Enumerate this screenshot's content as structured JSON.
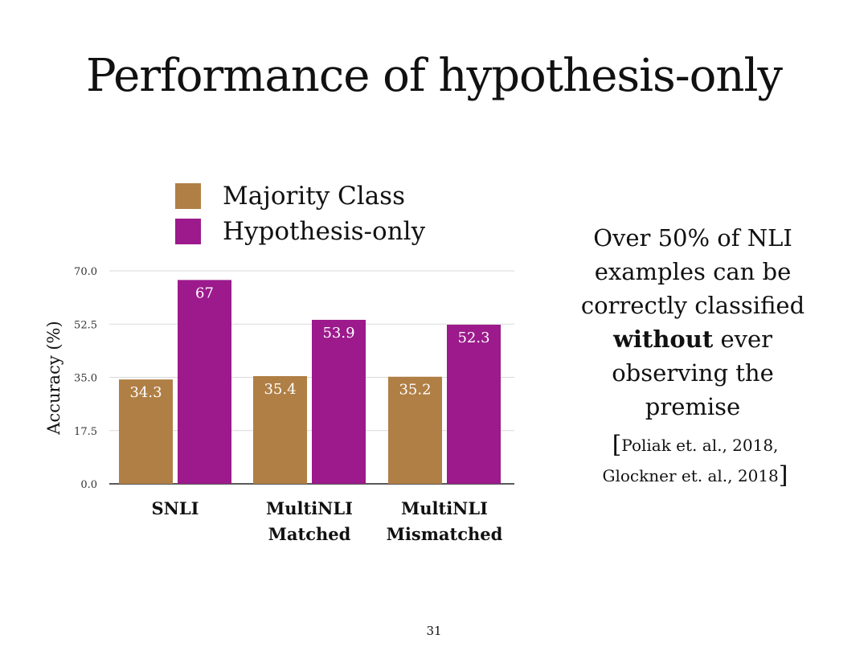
{
  "slide": {
    "title": "Performance of hypothesis-only",
    "page_number": "31"
  },
  "side_text": {
    "line1": "Over 50% of NLI",
    "line2": "examples can be",
    "line3": "correctly classified",
    "line4_emph": "without",
    "line4_rest": " ever",
    "line5": "observing the",
    "line6": "premise",
    "citation_open": "[",
    "citation_line1": "Poliak et. al., 2018,",
    "citation_line2": "Glockner et. al., 2018",
    "citation_close": "]"
  },
  "colors": {
    "majority": "#b07f45",
    "hypothesis": "#9c1a8c",
    "grid": "#d9d9d9",
    "axis": "#222222"
  },
  "chart_data": {
    "type": "bar",
    "title": "",
    "xlabel": "",
    "ylabel": "Accuracy (%)",
    "ylim": [
      0,
      70
    ],
    "yticks": [
      0,
      17.5,
      35,
      52.5,
      70
    ],
    "ytick_labels": [
      "0.0",
      "17.5",
      "35.0",
      "52.5",
      "70.0"
    ],
    "grid": true,
    "legend_position": "top",
    "categories": [
      [
        "SNLI"
      ],
      [
        "MultiNLI",
        "Matched"
      ],
      [
        "MultiNLI",
        "Mismatched"
      ]
    ],
    "series": [
      {
        "name": "Majority Class",
        "color_key": "majority",
        "values": [
          34.3,
          35.4,
          35.2
        ],
        "labels": [
          "34.3",
          "35.4",
          "35.2"
        ]
      },
      {
        "name": "Hypothesis-only",
        "color_key": "hypothesis",
        "values": [
          67,
          53.9,
          52.3
        ],
        "labels": [
          "67",
          "53.9",
          "52.3"
        ]
      }
    ]
  }
}
